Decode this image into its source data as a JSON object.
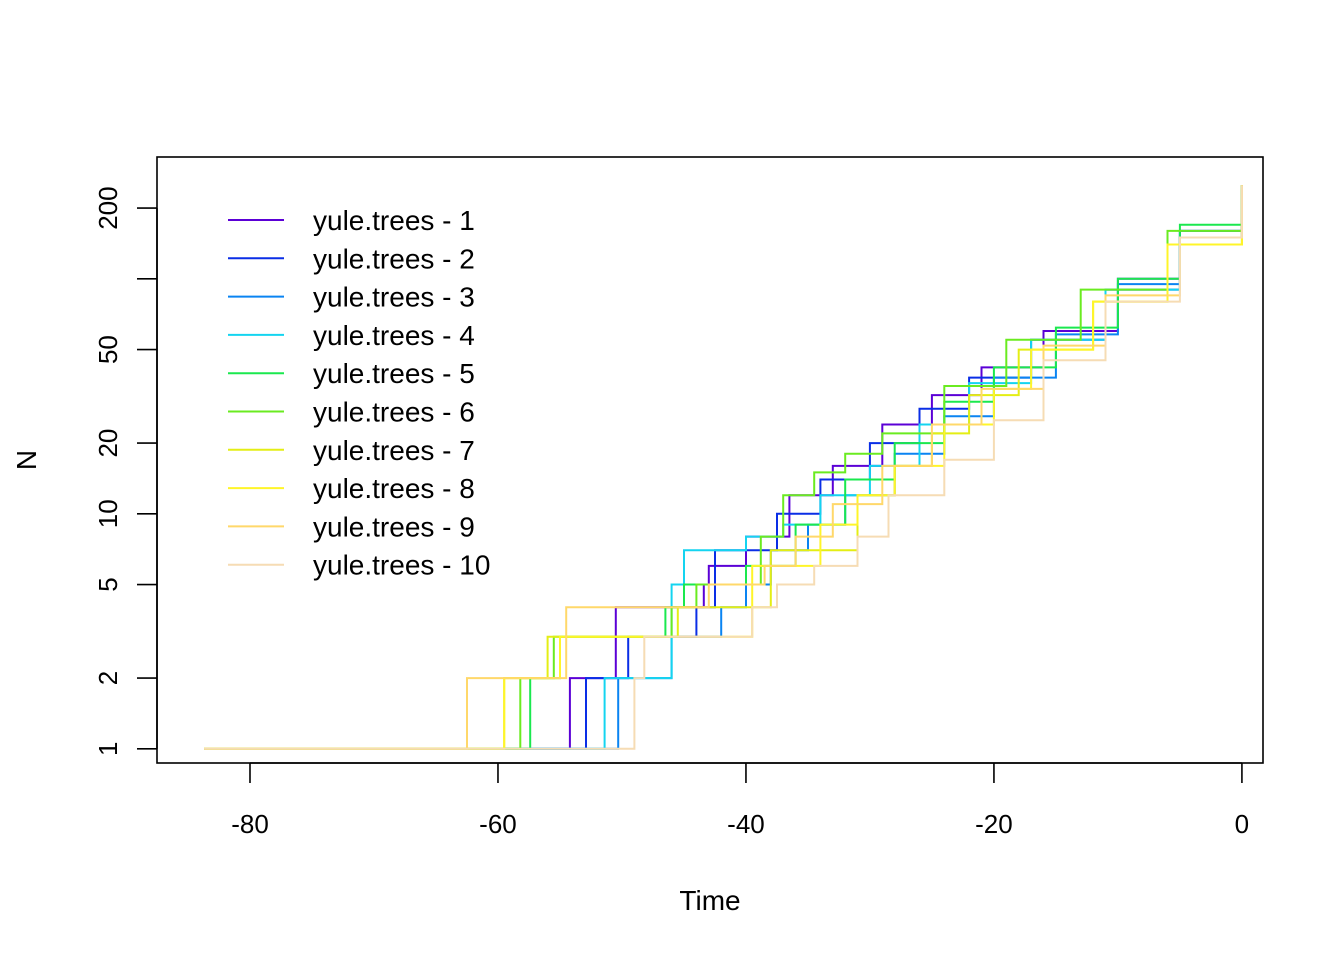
{
  "chart_data": {
    "type": "line",
    "title": "",
    "xlabel": "Time",
    "ylabel": "N",
    "xlim": [
      -87.5,
      1.7
    ],
    "ylim": [
      0.87,
      330
    ],
    "y_scale": "log",
    "grid": false,
    "legend_position": "top-left",
    "x_ticks": [
      -80,
      -60,
      -40,
      -20,
      0
    ],
    "x_tick_labels": [
      "-80",
      "-60",
      "-40",
      "-20",
      "0"
    ],
    "y_ticks": [
      1,
      2,
      5,
      10,
      20,
      50,
      100,
      200
    ],
    "y_tick_labels": [
      "1",
      "2",
      "5",
      "10",
      "20",
      "50",
      "",
      "200"
    ],
    "series": [
      {
        "name": "yule.trees - 1",
        "color": "#5B00D6",
        "x": [
          -83.7,
          -54.2,
          -50.5,
          -43.4,
          -43.0,
          -40.0,
          -36.5,
          -33.0,
          -29.0,
          -25.0,
          -21.0,
          -16.0,
          -10.0,
          -5.0,
          0
        ],
        "y": [
          1,
          2,
          4,
          5,
          6,
          8,
          12,
          16,
          24,
          32,
          42,
          60,
          100,
          160,
          250
        ]
      },
      {
        "name": "yule.trees - 2",
        "color": "#0A2EE6",
        "x": [
          -83.7,
          -52.9,
          -49.5,
          -44.0,
          -42.5,
          -40.0,
          -37.5,
          -34.0,
          -30.0,
          -26.0,
          -22.0,
          -17.0,
          -11.0,
          -5.0,
          0
        ],
        "y": [
          1,
          2,
          3,
          4,
          7,
          7,
          10,
          14,
          20,
          28,
          38,
          55,
          90,
          150,
          240
        ]
      },
      {
        "name": "yule.trees - 3",
        "color": "#0A84F2",
        "x": [
          -83.7,
          -50.3,
          -46.0,
          -42.0,
          -40.0,
          -38.0,
          -35.0,
          -32.0,
          -28.0,
          -24.0,
          -20.0,
          -15.0,
          -10.0,
          -5.0,
          0
        ],
        "y": [
          1,
          2,
          3,
          4,
          5,
          7,
          9,
          12,
          18,
          26,
          38,
          58,
          95,
          160,
          250
        ]
      },
      {
        "name": "yule.trees - 4",
        "color": "#14D4F0",
        "x": [
          -83.7,
          -51.4,
          -46.0,
          -45.0,
          -44.0,
          -40.0,
          -37.0,
          -34.0,
          -30.0,
          -26.0,
          -22.0,
          -17.0,
          -11.0,
          -5.0,
          0
        ],
        "y": [
          1,
          2,
          5,
          7,
          7,
          8,
          9,
          12,
          16,
          24,
          36,
          55,
          90,
          150,
          250
        ]
      },
      {
        "name": "yule.trees - 5",
        "color": "#1AE84E",
        "x": [
          -83.7,
          -57.4,
          -55.0,
          -46.5,
          -45.0,
          -40.0,
          -36.0,
          -32.0,
          -28.0,
          -24.0,
          -20.0,
          -15.0,
          -10.0,
          -5.0,
          0
        ],
        "y": [
          1,
          2,
          3,
          4,
          5,
          6,
          9,
          14,
          20,
          30,
          42,
          62,
          100,
          170,
          250
        ]
      },
      {
        "name": "yule.trees - 6",
        "color": "#6AEB20",
        "x": [
          -83.7,
          -58.2,
          -55.5,
          -46.0,
          -44.0,
          -38.8,
          -37.0,
          -34.5,
          -32.0,
          -29.0,
          -24.0,
          -19.0,
          -13.0,
          -6.0,
          0
        ],
        "y": [
          1,
          2,
          3,
          4,
          5,
          8,
          12,
          15,
          18,
          22,
          35,
          55,
          90,
          160,
          250
        ]
      },
      {
        "name": "yule.trees - 7",
        "color": "#E4EE14",
        "x": [
          -83.7,
          -59.5,
          -56.0,
          -45.5,
          -42.0,
          -38.0,
          -34.5,
          -31.0,
          -28.0,
          -25.0,
          -22.0,
          -18.0,
          -12.0,
          -6.0,
          0
        ],
        "y": [
          1,
          2,
          3,
          4,
          4,
          7,
          7,
          12,
          16,
          22,
          32,
          50,
          80,
          140,
          250
        ]
      },
      {
        "name": "yule.trees - 8",
        "color": "#FFF529",
        "x": [
          -83.7,
          -59.5,
          -55.0,
          -52.0,
          -46.0,
          -39.5,
          -34.0,
          -31.0,
          -28.0,
          -24.0,
          -20.0,
          -17.0,
          -12.0,
          -6.0,
          0
        ],
        "y": [
          1,
          2,
          3,
          3,
          3,
          6,
          9,
          12,
          16,
          24,
          34,
          50,
          80,
          140,
          250
        ]
      },
      {
        "name": "yule.trees - 9",
        "color": "#FFD86A",
        "x": [
          -83.7,
          -62.5,
          -54.5,
          -47.0,
          -43.0,
          -38.5,
          -36.0,
          -33.0,
          -29.0,
          -25.0,
          -21.0,
          -16.0,
          -11.0,
          -5.0,
          0
        ],
        "y": [
          1,
          2,
          4,
          4,
          5,
          6,
          8,
          11,
          16,
          24,
          34,
          52,
          85,
          150,
          250
        ]
      },
      {
        "name": "yule.trees - 10",
        "color": "#F6DCB4",
        "x": [
          -83.7,
          -49.0,
          -48.2,
          -44.0,
          -39.5,
          -37.5,
          -34.5,
          -31.0,
          -28.5,
          -24.0,
          -20.0,
          -16.0,
          -11.0,
          -5.0,
          0
        ],
        "y": [
          1,
          2,
          3,
          3,
          4,
          5,
          6,
          8,
          12,
          17,
          25,
          45,
          80,
          150,
          250
        ]
      }
    ]
  }
}
